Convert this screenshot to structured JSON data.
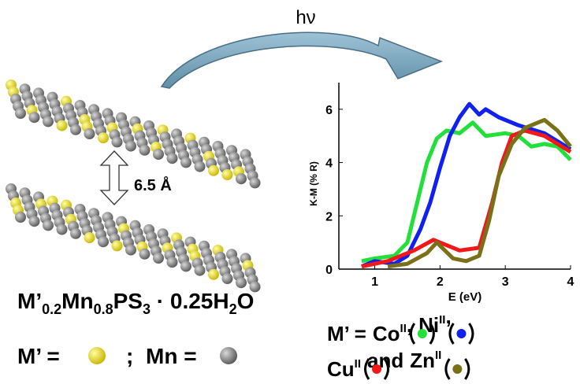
{
  "chart_data": {
    "type": "line",
    "ylabel": "K-M (% R)",
    "xlabel": "E (eV)",
    "xlim": [
      0.45,
      4
    ],
    "ylim": [
      0,
      7
    ],
    "xticks": [
      1,
      2,
      3,
      4
    ],
    "yticks": [
      0,
      2,
      4,
      6
    ],
    "series": [
      {
        "name": "Co",
        "superscript": "II",
        "color": "#22e03a",
        "x": [
          0.8,
          1.0,
          1.3,
          1.5,
          1.65,
          1.8,
          1.95,
          2.1,
          2.3,
          2.5,
          2.7,
          3.0,
          3.2,
          3.4,
          3.6,
          3.8,
          4.0
        ],
        "values": [
          0.3,
          0.4,
          0.5,
          1.0,
          2.5,
          4.0,
          4.9,
          5.2,
          5.1,
          5.5,
          5.0,
          5.1,
          5.0,
          4.6,
          4.7,
          4.6,
          4.1
        ]
      },
      {
        "name": "Ni",
        "superscript": "II",
        "color": "#1020f0",
        "x": [
          0.8,
          1.0,
          1.3,
          1.5,
          1.7,
          1.85,
          2.0,
          2.15,
          2.3,
          2.45,
          2.6,
          2.7,
          2.9,
          3.2,
          3.6,
          4.0
        ],
        "values": [
          0.1,
          0.3,
          0.2,
          0.5,
          1.5,
          2.5,
          3.8,
          5.0,
          5.7,
          6.2,
          5.8,
          6.0,
          5.7,
          5.4,
          5.1,
          4.5
        ]
      },
      {
        "name": "Cu",
        "superscript": "II",
        "color": "#f01818",
        "x": [
          0.8,
          1.2,
          1.6,
          1.9,
          2.1,
          2.3,
          2.6,
          2.8,
          2.95,
          3.1,
          3.3,
          3.6,
          4.0
        ],
        "values": [
          0.1,
          0.3,
          0.7,
          1.1,
          0.9,
          0.7,
          0.8,
          2.5,
          4.0,
          5.0,
          5.2,
          5.0,
          4.4
        ]
      },
      {
        "name": "Zn",
        "superscript": "II",
        "color": "#7a7018",
        "x": [
          1.2,
          1.5,
          1.8,
          1.95,
          2.2,
          2.4,
          2.6,
          2.75,
          2.9,
          3.1,
          3.3,
          3.6,
          3.8,
          4.0
        ],
        "values": [
          0.1,
          0.2,
          0.6,
          1.0,
          0.4,
          0.3,
          0.5,
          1.8,
          3.5,
          4.7,
          5.3,
          5.6,
          5.2,
          4.6
        ]
      }
    ],
    "legend_prefix": "M’ =",
    "legend_separator": ",",
    "legend_conjunction": "and"
  },
  "photon": "hν",
  "interlayer_distance": "6.5 Å",
  "formula": [
    "M’",
    "0.2",
    "Mn",
    "0.8",
    "PS",
    "3",
    " · 0.25H",
    "2",
    "O"
  ],
  "key": {
    "dopant_label": "M’ =",
    "separator": ";",
    "host_label": "Mn ="
  }
}
